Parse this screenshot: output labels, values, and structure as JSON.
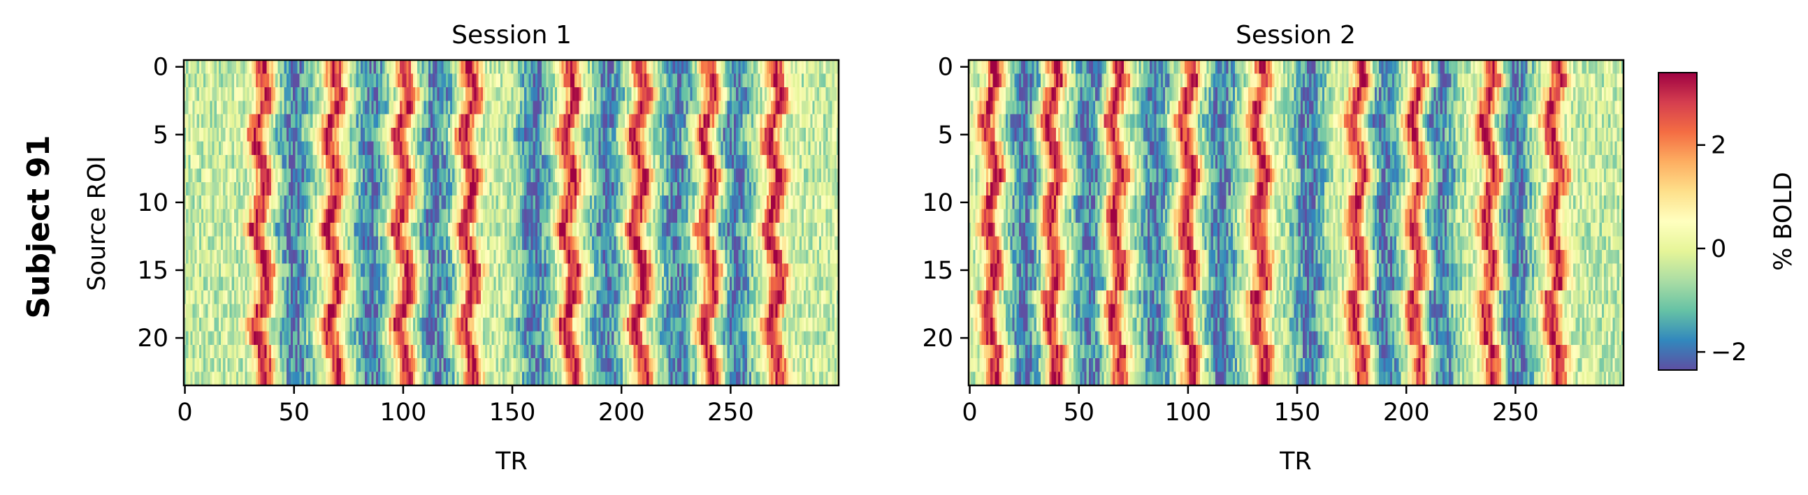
{
  "figure": {
    "row_label": "Subject 91"
  },
  "chart_data": [
    {
      "type": "heatmap",
      "title": "Session 1",
      "xlabel": "TR",
      "ylabel": "Source ROI",
      "x_range": [
        0,
        299
      ],
      "y_range": [
        0,
        23
      ],
      "x_ticks": [
        0,
        50,
        100,
        150,
        200,
        250
      ],
      "y_ticks": [
        0,
        5,
        10,
        15,
        20
      ],
      "rows": 24,
      "cols": 300,
      "peak_centers_tr": [
        35,
        68,
        100,
        130,
        176,
        208,
        240,
        270
      ],
      "trough_centers_tr": [
        50,
        85,
        115,
        160,
        193,
        225,
        252
      ]
    },
    {
      "type": "heatmap",
      "title": "Session 2",
      "xlabel": "TR",
      "ylabel": "",
      "x_range": [
        0,
        299
      ],
      "y_range": [
        0,
        23
      ],
      "x_ticks": [
        0,
        50,
        100,
        150,
        200,
        250
      ],
      "y_ticks": [
        0,
        5,
        10,
        15,
        20
      ],
      "rows": 24,
      "cols": 300,
      "peak_centers_tr": [
        10,
        38,
        67,
        100,
        133,
        178,
        205,
        238,
        268
      ],
      "trough_centers_tr": [
        25,
        55,
        85,
        115,
        155,
        190,
        215,
        250
      ]
    }
  ],
  "colorbar": {
    "label": "% BOLD",
    "range": [
      -2.35,
      3.4
    ],
    "ticks": [
      -2,
      0,
      2
    ],
    "tick_labels": [
      "−2",
      "0",
      "2"
    ],
    "colormap": "Spectral_r"
  }
}
